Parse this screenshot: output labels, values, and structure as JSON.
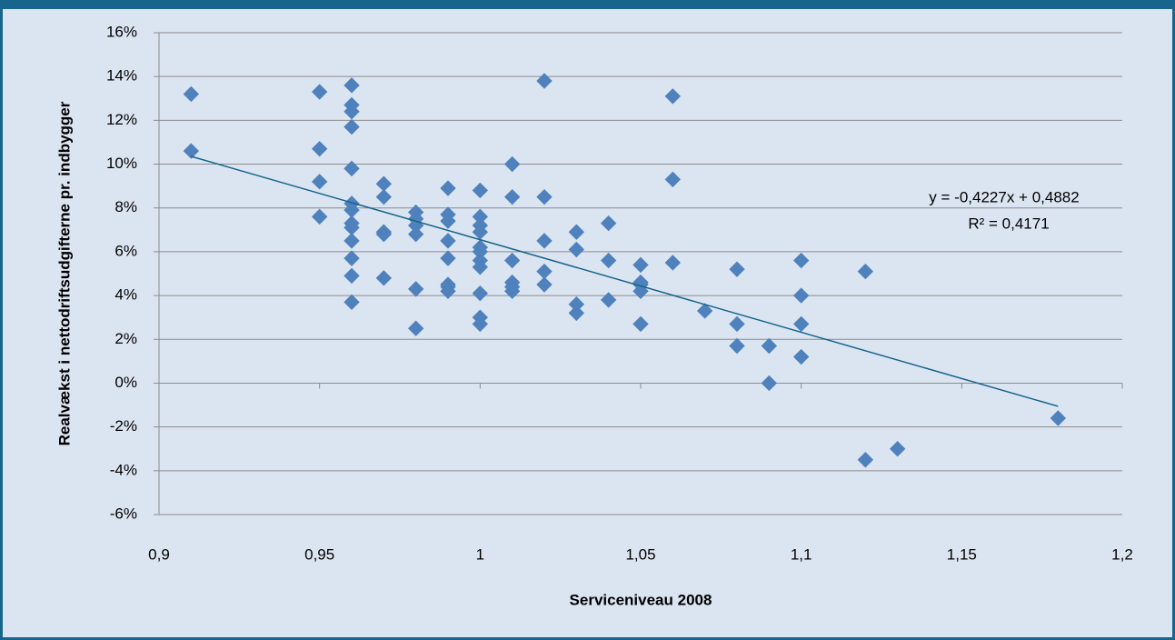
{
  "chart_data": {
    "type": "scatter",
    "x_label": "Serviceniveau 2008",
    "y_label": "Realvækst i nettodriftsudgifterne pr. indbygger",
    "xlim": [
      0.9,
      1.2
    ],
    "xticks": [
      {
        "value": 0.9,
        "label": "0,9"
      },
      {
        "value": 0.95,
        "label": "0,95"
      },
      1,
      {
        "value": 1.05,
        "label": "1,05"
      },
      {
        "value": 1.1,
        "label": "1,1"
      },
      {
        "value": 1.15,
        "label": "1,15"
      },
      {
        "value": 1.2,
        "label": "1,2"
      }
    ],
    "ylim": [
      -0.06,
      0.16
    ],
    "yticks": [
      {
        "value": -0.06,
        "label": "-6%"
      },
      {
        "value": -0.04,
        "label": "-4%"
      },
      {
        "value": -0.02,
        "label": "-2%"
      },
      {
        "value": 0,
        "label": "0%"
      },
      {
        "value": 0.02,
        "label": "2%"
      },
      {
        "value": 0.04,
        "label": "4%"
      },
      {
        "value": 0.06,
        "label": "6%"
      },
      {
        "value": 0.08,
        "label": "8%"
      },
      {
        "value": 0.1,
        "label": "10%"
      },
      {
        "value": 0.12,
        "label": "12%"
      },
      {
        "value": 0.14,
        "label": "14%"
      },
      {
        "value": 0.16,
        "label": "16%"
      }
    ],
    "grid": true,
    "x": [
      0.91,
      0.91,
      0.95,
      0.95,
      0.95,
      0.95,
      0.96,
      0.96,
      0.96,
      0.96,
      0.96,
      0.96,
      0.96,
      0.96,
      0.96,
      0.96,
      0.96,
      0.96,
      0.96,
      0.97,
      0.97,
      0.97,
      0.97,
      0.97,
      0.98,
      0.98,
      0.98,
      0.98,
      0.98,
      0.98,
      0.99,
      0.99,
      0.99,
      0.99,
      0.99,
      0.99,
      0.99,
      0.99,
      1,
      1,
      1,
      1,
      1,
      1,
      1,
      1,
      1,
      1,
      1,
      1.01,
      1.01,
      1.01,
      1.01,
      1.01,
      1.01,
      1.02,
      1.02,
      1.02,
      1.02,
      1.02,
      1.03,
      1.03,
      1.03,
      1.03,
      1.04,
      1.04,
      1.04,
      1.05,
      1.05,
      1.05,
      1.05,
      1.05,
      1.06,
      1.06,
      1.06,
      1.07,
      1.08,
      1.08,
      1.08,
      1.09,
      1.09,
      1.1,
      1.1,
      1.1,
      1.1,
      1.12,
      1.12,
      1.13,
      1.18
    ],
    "series": [
      {
        "color": "#4f81bd",
        "values": [
          0.132,
          0.106,
          0.133,
          0.107,
          0.092,
          0.076,
          0.136,
          0.127,
          0.124,
          0.117,
          0.098,
          0.082,
          0.079,
          0.073,
          0.071,
          0.065,
          0.057,
          0.049,
          0.037,
          0.091,
          0.085,
          0.069,
          0.068,
          0.048,
          0.078,
          0.075,
          0.072,
          0.068,
          0.043,
          0.025,
          0.089,
          0.077,
          0.074,
          0.065,
          0.057,
          0.045,
          0.044,
          0.042,
          0.088,
          0.076,
          0.072,
          0.069,
          0.062,
          0.06,
          0.056,
          0.053,
          0.041,
          0.03,
          0.027,
          0.1,
          0.085,
          0.056,
          0.046,
          0.044,
          0.042,
          0.138,
          0.085,
          0.065,
          0.051,
          0.045,
          0.069,
          0.061,
          0.036,
          0.032,
          0.073,
          0.056,
          0.038,
          0.054,
          0.046,
          0.045,
          0.042,
          0.027,
          0.131,
          0.093,
          0.055,
          0.033,
          0.052,
          0.027,
          0.017,
          0.017,
          0,
          0.056,
          0.04,
          0.027,
          0.012,
          0.051,
          -0.035,
          -0.03,
          -0.016
        ]
      }
    ],
    "trendline": {
      "slope": -0.4227,
      "intercept": 0.4882,
      "color": "#17648c",
      "equation": "y = -0,4227x + 0,4882",
      "r_squared": "R² = 0,4171"
    }
  }
}
